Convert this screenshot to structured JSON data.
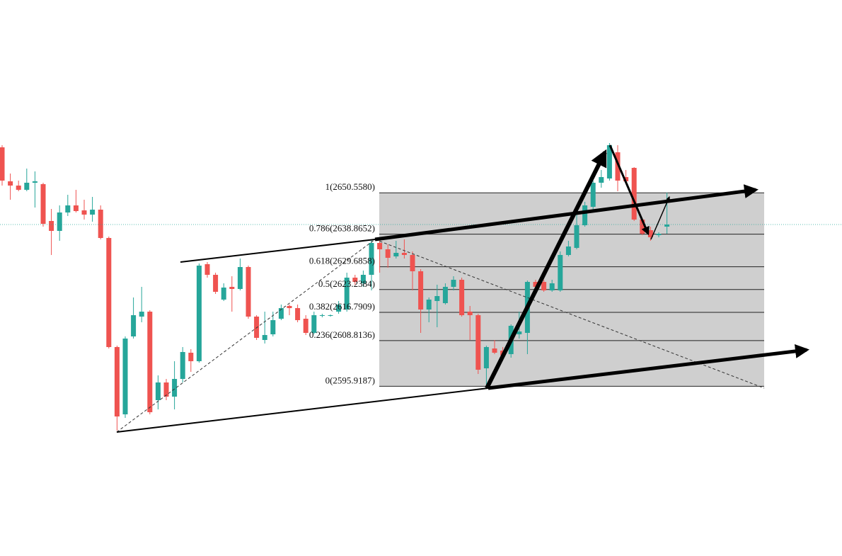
{
  "chart_data": {
    "type": "candlestick",
    "up_color": "#26a69a",
    "down_color": "#ef5350",
    "ylim": [
      2548,
      2705
    ],
    "candles": [
      [
        2663.4,
        2664,
        2652.6,
        2654
      ],
      [
        2653.8,
        2656,
        2648.6,
        2652.6
      ],
      [
        2652.6,
        2654,
        2651,
        2651.4
      ],
      [
        2651.4,
        2657.4,
        2651,
        2653.4
      ],
      [
        2653.4,
        2656.6,
        2646.4,
        2653.8
      ],
      [
        2653,
        2653.4,
        2641,
        2641.8
      ],
      [
        2642.6,
        2646,
        2633,
        2639.8
      ],
      [
        2639.8,
        2647,
        2637,
        2645
      ],
      [
        2645,
        2650,
        2644,
        2647
      ],
      [
        2647,
        2651.4,
        2645,
        2645.4
      ],
      [
        2645.6,
        2648.6,
        2643,
        2644.4
      ],
      [
        2644.4,
        2649.4,
        2642.4,
        2645.8
      ],
      [
        2645.8,
        2647,
        2637.4,
        2637.8
      ],
      [
        2637.8,
        2638.2,
        2606.6,
        2607
      ],
      [
        2607,
        2607.4,
        2583.4,
        2587.4
      ],
      [
        2588,
        2610,
        2587,
        2609.4
      ],
      [
        2610,
        2621,
        2609.4,
        2616
      ],
      [
        2615.6,
        2624,
        2614,
        2617
      ],
      [
        2617,
        2617.4,
        2588,
        2588.6
      ],
      [
        2592,
        2599,
        2589.4,
        2597
      ],
      [
        2597,
        2598,
        2592,
        2593
      ],
      [
        2593,
        2603,
        2589.4,
        2598
      ],
      [
        2598,
        2607,
        2597,
        2605.6
      ],
      [
        2605.4,
        2606.4,
        2600,
        2603
      ],
      [
        2603,
        2630.6,
        2602.6,
        2630
      ],
      [
        2630.4,
        2631,
        2626.6,
        2627.4
      ],
      [
        2627.4,
        2628,
        2622,
        2622.6
      ],
      [
        2620.4,
        2625,
        2620,
        2623.8
      ],
      [
        2624,
        2627,
        2617,
        2623.4
      ],
      [
        2623.4,
        2632,
        2623,
        2629.6
      ],
      [
        2629.6,
        2630,
        2615,
        2615.6
      ],
      [
        2615.6,
        2616,
        2609,
        2609.6
      ],
      [
        2609,
        2617,
        2608,
        2610.4
      ],
      [
        2610.6,
        2617,
        2610,
        2614.6
      ],
      [
        2615,
        2619,
        2614.6,
        2618
      ],
      [
        2618.6,
        2619,
        2616,
        2618
      ],
      [
        2618,
        2619,
        2614,
        2614.6
      ],
      [
        2615,
        2616,
        2610.4,
        2611
      ],
      [
        2611,
        2617,
        2610.6,
        2616
      ],
      [
        2615.8,
        2616.4,
        2615.4,
        2616
      ],
      [
        2615.8,
        2616.2,
        2615.6,
        2616
      ],
      [
        2617,
        2620,
        2616.4,
        2619
      ],
      [
        2617.6,
        2628,
        2617,
        2626.6
      ],
      [
        2626.6,
        2627.4,
        2624.6,
        2625.4
      ],
      [
        2625,
        2628.6,
        2624,
        2627.4
      ],
      [
        2627.4,
        2637.4,
        2623,
        2636.4
      ],
      [
        2636.4,
        2637,
        2628,
        2634.6
      ],
      [
        2634.6,
        2636,
        2629.4,
        2632.2
      ],
      [
        2632.6,
        2637,
        2632,
        2633.6
      ],
      [
        2633.6,
        2637.4,
        2632,
        2633
      ],
      [
        2633,
        2634,
        2623,
        2628.4
      ],
      [
        2628.4,
        2629,
        2611,
        2617.6
      ],
      [
        2617.6,
        2621,
        2614,
        2620.4
      ],
      [
        2620,
        2624.6,
        2612.6,
        2621.4
      ],
      [
        2619.4,
        2625,
        2619,
        2624
      ],
      [
        2624,
        2627,
        2623,
        2626
      ],
      [
        2626,
        2626.6,
        2615.6,
        2616
      ],
      [
        2617,
        2618.6,
        2609,
        2616
      ],
      [
        2616,
        2616.4,
        2599.4,
        2600.6
      ],
      [
        2601,
        2607.4,
        2595.4,
        2607
      ],
      [
        2606.6,
        2609,
        2605,
        2605.4
      ],
      [
        2606,
        2607,
        2604,
        2604.6
      ],
      [
        2605,
        2613.4,
        2604,
        2613
      ],
      [
        2610.6,
        2617,
        2609.4,
        2611.4
      ],
      [
        2611,
        2625.8,
        2605,
        2625.4
      ],
      [
        2625.4,
        2626,
        2623,
        2624
      ],
      [
        2625.4,
        2626,
        2622.6,
        2623
      ],
      [
        2623,
        2626,
        2622.6,
        2625
      ],
      [
        2623,
        2634,
        2622.6,
        2633
      ],
      [
        2633,
        2637,
        2632.6,
        2635.4
      ],
      [
        2635,
        2645.4,
        2634.6,
        2641.4
      ],
      [
        2641.4,
        2648,
        2641,
        2647
      ],
      [
        2646.6,
        2654,
        2645.8,
        2653.4
      ],
      [
        2653.4,
        2657,
        2652,
        2655
      ],
      [
        2654.6,
        2664.6,
        2654,
        2664
      ],
      [
        2662,
        2664,
        2651,
        2654
      ],
      [
        2655,
        2657,
        2653.4,
        2653.8
      ],
      [
        2657.6,
        2657.8,
        2642.6,
        2643
      ],
      [
        2643,
        2643.4,
        2638.6,
        2639
      ],
      [
        2640,
        2641,
        2637,
        2638
      ],
      [
        2638.6,
        2639.4,
        2638,
        2639
      ],
      [
        2641,
        2650.6,
        2639,
        2641.6
      ]
    ],
    "fib_levels": [
      {
        "value": 2650.558,
        "label": "1(2650.5580)"
      },
      {
        "value": 2638.8652,
        "label": "0.786(2638.8652)"
      },
      {
        "value": 2629.6858,
        "label": "0.618(2629.6858)"
      },
      {
        "value": 2623.2384,
        "label": "0.5(2623.2384)"
      },
      {
        "value": 2616.7909,
        "label": "0.382(2616.7909)"
      },
      {
        "value": 2608.8136,
        "label": "0.236(2608.8136)"
      },
      {
        "value": 2595.9187,
        "label": "0(2595.9187)"
      }
    ]
  }
}
